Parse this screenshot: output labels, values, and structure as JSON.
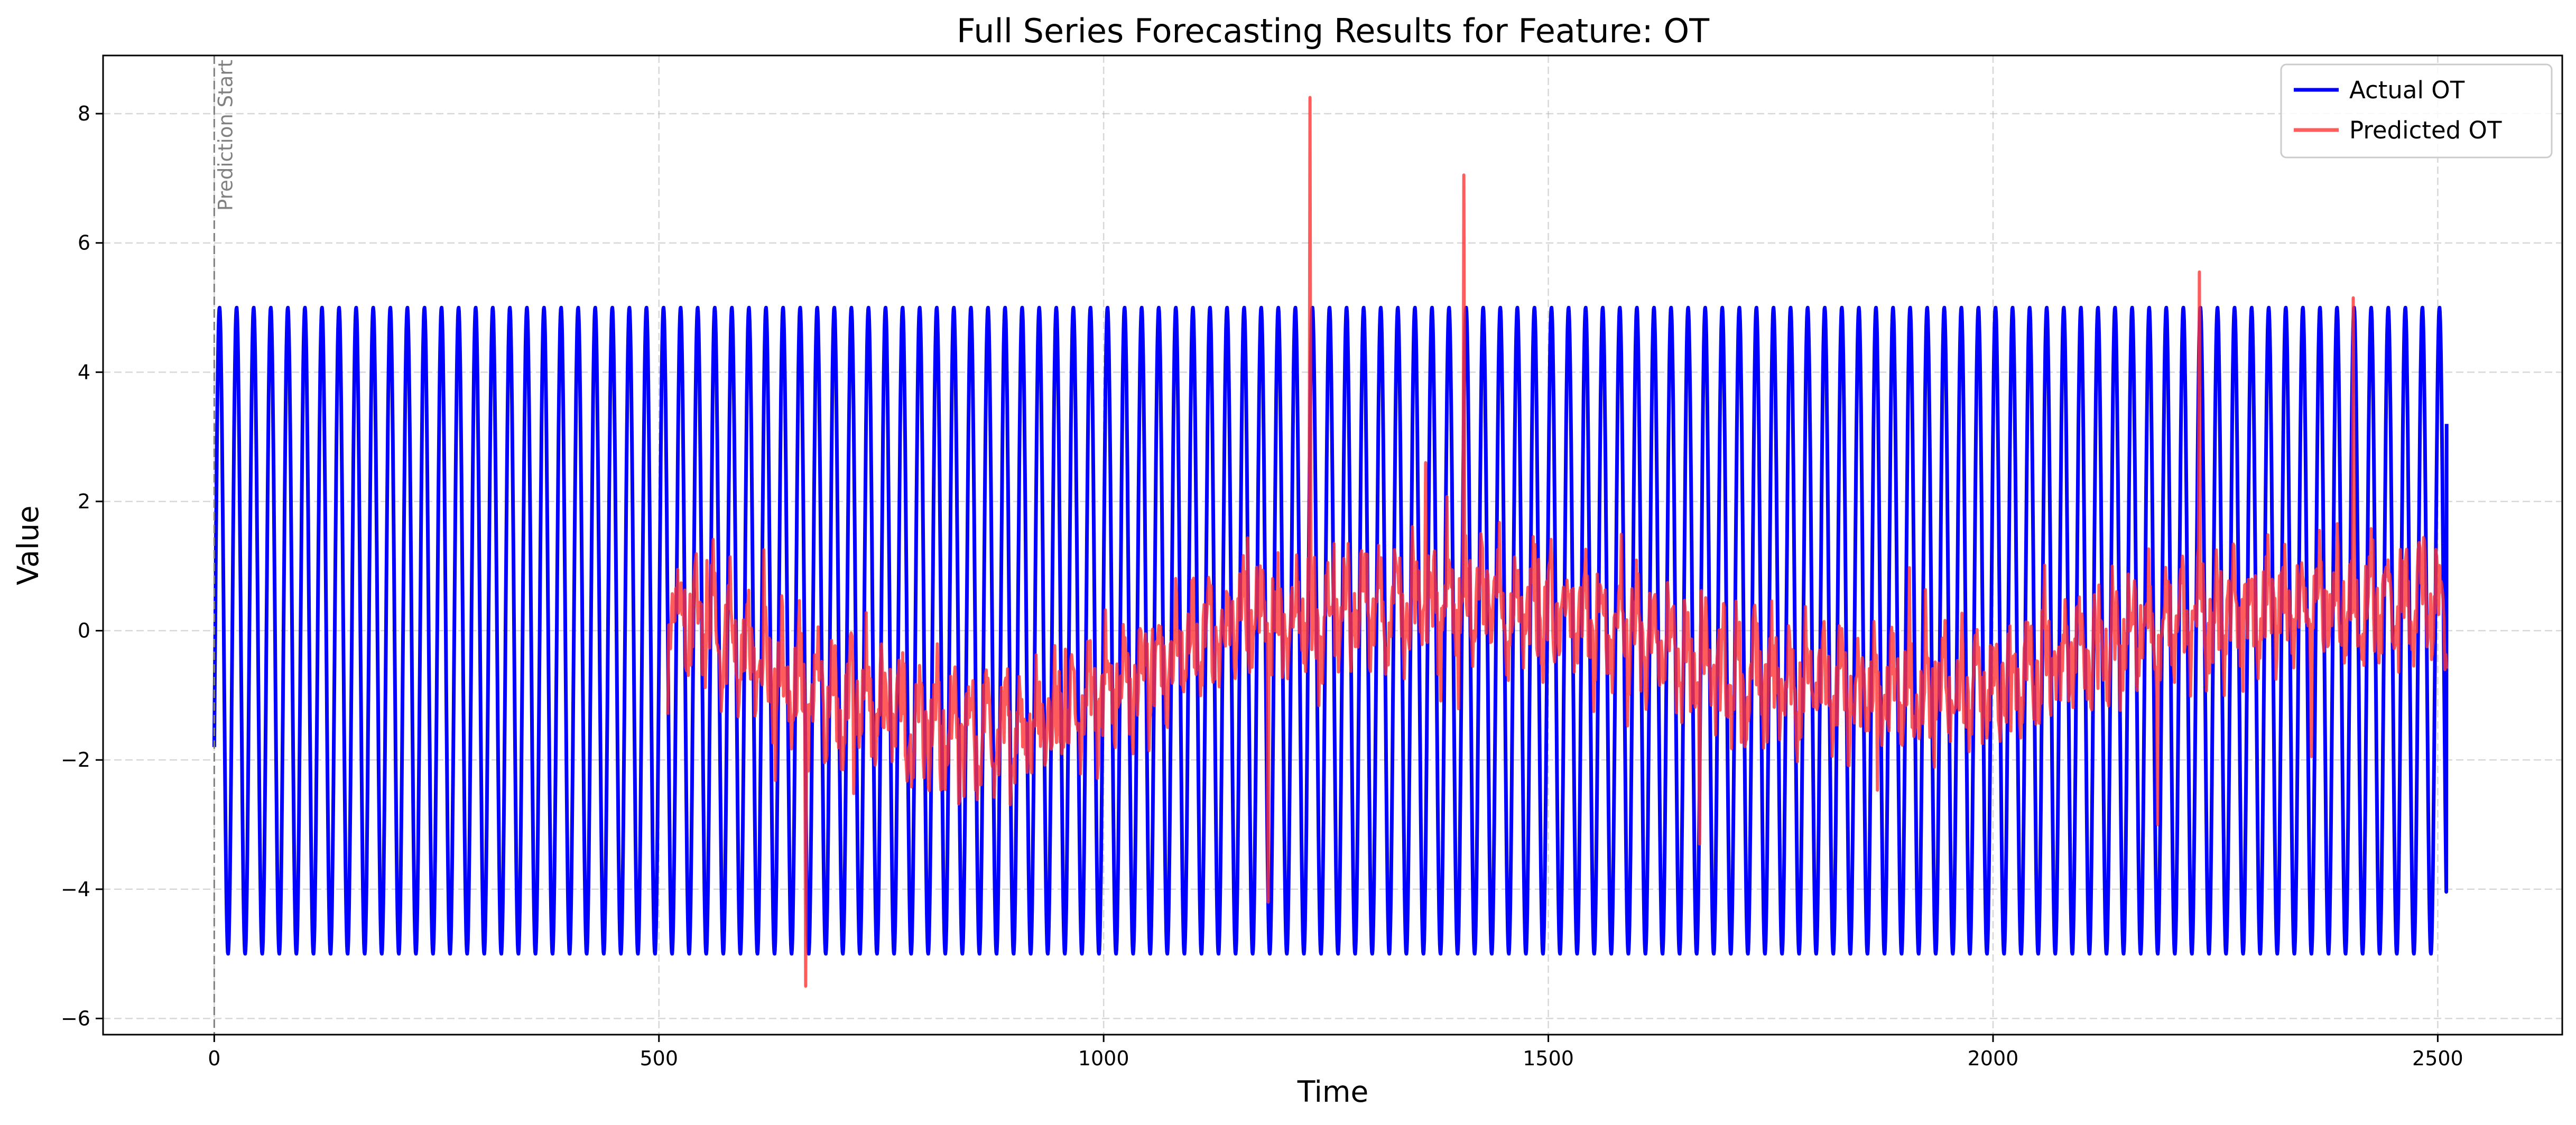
{
  "chart_data": {
    "type": "line",
    "title": "Full Series Forecasting Results for Feature: OT",
    "xlabel": "Time",
    "ylabel": "Value",
    "xlim": [
      -125,
      2640
    ],
    "ylim": [
      -6.25,
      8.9
    ],
    "xticks": [
      0,
      500,
      1000,
      1500,
      2000,
      2500
    ],
    "yticks": [
      -6,
      -4,
      -2,
      0,
      2,
      4,
      6,
      8
    ],
    "grid": true,
    "legend_position": "top-right",
    "annotation": {
      "text": "Prediction Start",
      "x": 0
    },
    "series": [
      {
        "name": "Actual OT",
        "color": "#0000ff",
        "form": "sine",
        "amplitude": 5,
        "period": 19.2,
        "x_start": 0,
        "x_end": 2510,
        "first_value": -1.8,
        "last_value": 3.2
      },
      {
        "name": "Predicted OT",
        "color": "#ff3333",
        "x_start": 510,
        "x_end": 2510,
        "trend_x": [
          510,
          560,
          600,
          640,
          700,
          760,
          800,
          860,
          920,
          960,
          1000,
          1040,
          1080,
          1120,
          1160,
          1200,
          1240,
          1300,
          1360,
          1400,
          1450,
          1500,
          1550,
          1600,
          1640,
          1680,
          1720,
          1760,
          1800,
          1840,
          1880,
          1920,
          1960,
          2000,
          2040,
          2080,
          2120,
          2160,
          2200,
          2240,
          2280,
          2320,
          2360,
          2400,
          2440,
          2480,
          2510
        ],
        "trend_y": [
          0.2,
          0.1,
          -0.3,
          -0.7,
          -1.1,
          -1.3,
          -1.5,
          -1.6,
          -1.5,
          -1.3,
          -1.0,
          -0.7,
          -0.4,
          -0.1,
          0.1,
          0.2,
          0.3,
          0.3,
          0.4,
          0.4,
          0.4,
          0.3,
          0.2,
          0.0,
          -0.3,
          -0.5,
          -0.7,
          -0.8,
          -0.9,
          -0.9,
          -1.0,
          -1.0,
          -0.9,
          -0.8,
          -0.6,
          -0.4,
          -0.2,
          0.0,
          0.1,
          0.2,
          0.3,
          0.3,
          0.4,
          0.4,
          0.4,
          0.4,
          0.3
        ],
        "spikes": [
          {
            "x": 510,
            "y": -1.3
          },
          {
            "x": 665,
            "y": -5.5
          },
          {
            "x": 1185,
            "y": -4.2
          },
          {
            "x": 1232,
            "y": 8.25
          },
          {
            "x": 1362,
            "y": 2.6
          },
          {
            "x": 1405,
            "y": 7.05
          },
          {
            "x": 1670,
            "y": -3.3
          },
          {
            "x": 2185,
            "y": -3.0
          },
          {
            "x": 2232,
            "y": 5.55
          },
          {
            "x": 2405,
            "y": 5.15
          }
        ]
      }
    ]
  }
}
